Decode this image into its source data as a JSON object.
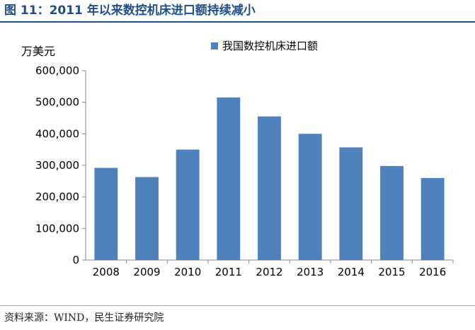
{
  "figure": {
    "title": "图 11：2011 年以来数控机床进口额持续减小",
    "title_color": "#1f4e89",
    "source": "资料来源：WIND，民生证券研究院"
  },
  "chart_data": {
    "type": "bar",
    "title": "",
    "xlabel": "",
    "ylabel": "万美元",
    "categories": [
      "2008",
      "2009",
      "2010",
      "2011",
      "2012",
      "2013",
      "2014",
      "2015",
      "2016"
    ],
    "series": [
      {
        "name": "我国数控机床进口额",
        "values": [
          292000,
          263000,
          350000,
          515000,
          455000,
          400000,
          357000,
          298000,
          260000
        ],
        "color": "#4f81bd"
      }
    ],
    "ylim": [
      0,
      600000
    ],
    "yticks": [
      0,
      100000,
      200000,
      300000,
      400000,
      500000,
      600000
    ],
    "ytick_labels": [
      "0",
      "100,000",
      "200,000",
      "300,000",
      "400,000",
      "500,000",
      "600,000"
    ],
    "grid": false,
    "legend": "top-center"
  }
}
